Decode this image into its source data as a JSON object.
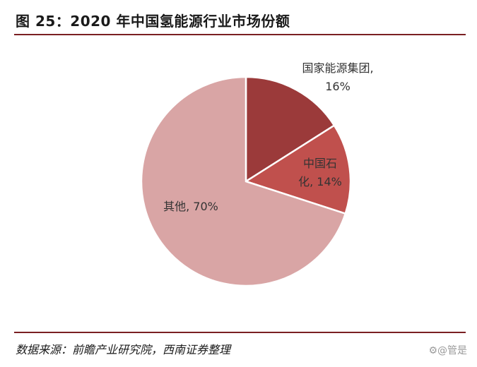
{
  "header": {
    "title": "图 25：2020 年中国氢能源行业市场份额"
  },
  "footer": {
    "source": "数据来源：前瞻产业研究院，西南证券整理",
    "watermark": "⚙@管是"
  },
  "chart_data": {
    "type": "pie",
    "title": "图 25：2020 年中国氢能源行业市场份额",
    "slices": [
      {
        "label_lines": [
          "国家能源集团,",
          "16%"
        ],
        "name": "国家能源集团",
        "value": 16,
        "color": "#9b3a3a"
      },
      {
        "label_lines": [
          "中国石",
          "化, 14%"
        ],
        "name": "中国石化",
        "value": 14,
        "color": "#c0504d"
      },
      {
        "label_lines": [
          "其他, 70%"
        ],
        "name": "其他",
        "value": 70,
        "color": "#d9a5a5"
      }
    ],
    "start_angle_deg": 0,
    "direction": "clockwise"
  }
}
